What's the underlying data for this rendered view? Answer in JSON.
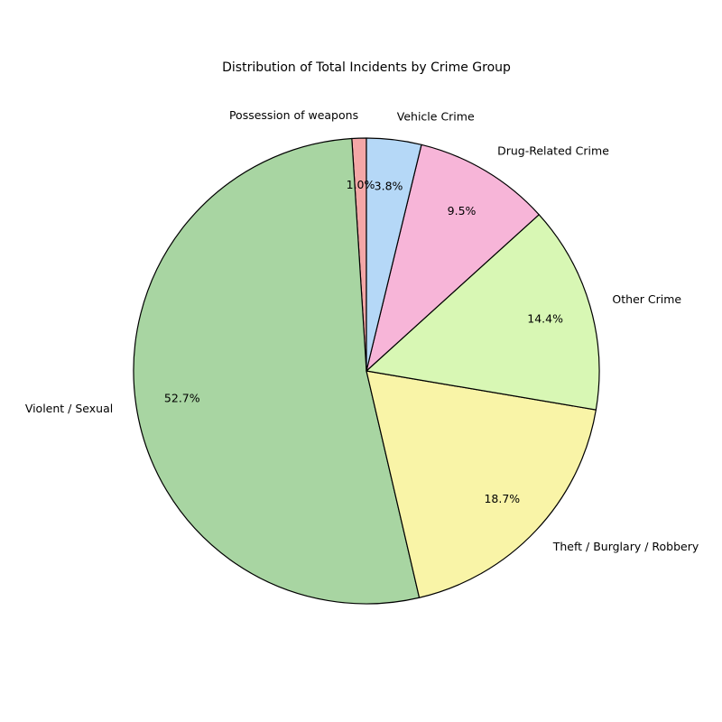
{
  "chart_data": {
    "type": "pie",
    "title": "Distribution of Total Incidents by Crime Group",
    "start_angle": 90,
    "direction": "counterclockwise",
    "slices": [
      {
        "label": "Possession of weapons",
        "value": 1.0,
        "pct_text": "1.0%",
        "color": "#f4a7a7"
      },
      {
        "label": "Violent / Sexual",
        "value": 52.7,
        "pct_text": "52.7%",
        "color": "#a8d5a2"
      },
      {
        "label": "Theft / Burglary / Robbery",
        "value": 18.7,
        "pct_text": "18.7%",
        "color": "#f9f4a7"
      },
      {
        "label": "Other Crime",
        "value": 14.4,
        "pct_text": "14.4%",
        "color": "#d8f7b4"
      },
      {
        "label": "Drug-Related Crime",
        "value": 9.5,
        "pct_text": "9.5%",
        "color": "#f7b5d8"
      },
      {
        "label": "Vehicle Crime",
        "value": 3.8,
        "pct_text": "3.8%",
        "color": "#b5d8f7"
      }
    ],
    "edge_color": "#000000",
    "legend": "none"
  }
}
